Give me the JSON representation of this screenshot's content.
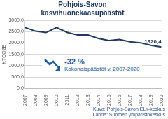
{
  "chart_data": {
    "type": "line",
    "title": [
      "Pohjois-Savon",
      "kasvihuonekaasupäästöt"
    ],
    "y_label": "KTCO2E",
    "categories": [
      "2007",
      "2008",
      "2009",
      "2010",
      "2011",
      "2012",
      "2013",
      "2014",
      "2015",
      "2016",
      "2017",
      "2018",
      "2019",
      "2020"
    ],
    "values": [
      2680,
      2520,
      2460,
      2680,
      2470,
      2350,
      2350,
      2200,
      2110,
      2150,
      2050,
      2010,
      1900,
      1820.4
    ],
    "value_labels": [
      null,
      null,
      null,
      null,
      null,
      null,
      null,
      null,
      null,
      null,
      null,
      null,
      null,
      "1820,4"
    ],
    "data_labels": true,
    "color": "#1f3864",
    "ylim": [
      0,
      3000
    ],
    "yticks": [
      {
        "value": 0,
        "label": "0,0"
      },
      {
        "value": 500,
        "label": "500,0"
      },
      {
        "value": 1000,
        "label": "1000,0"
      },
      {
        "value": 1500,
        "label": "1500,0"
      },
      {
        "value": 2000,
        "label": "2000,0"
      },
      {
        "value": 2500,
        "label": "2500,0"
      },
      {
        "value": 3000,
        "label": "3000,0"
      }
    ],
    "grid": true,
    "annotations": [
      "-32 %",
      "Kokonaispäästöt v. 2007-2020",
      "Kuva: Pohjois-Savon ELY-keskus",
      "Lähde: Suomen ympäristökeskus"
    ]
  }
}
